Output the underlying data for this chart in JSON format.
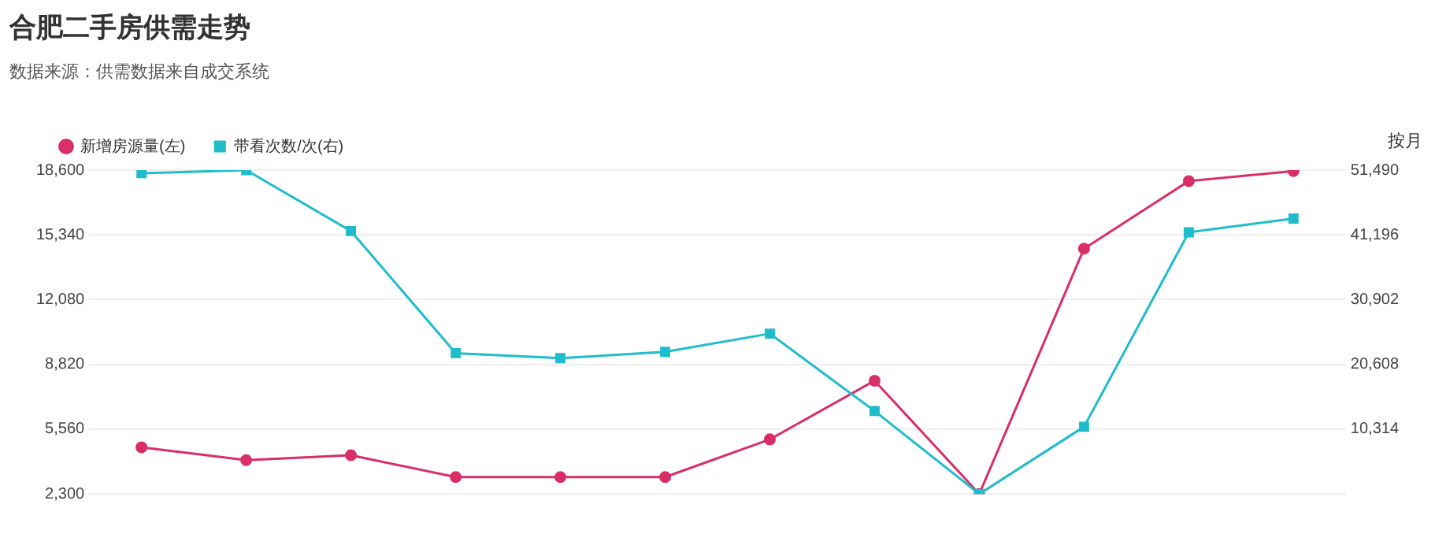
{
  "chart_data": {
    "type": "line",
    "title": "合肥二手房供需走势",
    "subtitle": "数据来源：供需数据来自成交系统",
    "annotations": [
      "按月"
    ],
    "categories": [
      null,
      null,
      null,
      null,
      null,
      null,
      null,
      null,
      null,
      null,
      null,
      null
    ],
    "series": [
      {
        "name": "新增房源量(左)",
        "color": "#d92e66",
        "marker": "circle",
        "values": [
          4650,
          4000,
          4250,
          3150,
          3150,
          3150,
          5050,
          8000,
          2300,
          14650,
          18050,
          18550
        ]
      },
      {
        "name": "带看次数/次(右)",
        "color": "#1fbccc",
        "marker": "square",
        "axis": "y2",
        "values": [
          51000,
          51490,
          41800,
          22400,
          21600,
          22600,
          25500,
          13200,
          20,
          10700,
          41600,
          43800
        ]
      }
    ],
    "ylim": [
      2300,
      18600
    ],
    "yticks": [
      {
        "value": 2300,
        "label": "2,300"
      },
      {
        "value": 5560,
        "label": "5,560"
      },
      {
        "value": 8820,
        "label": "8,820"
      },
      {
        "value": 12080,
        "label": "12,080"
      },
      {
        "value": 15340,
        "label": "15,340"
      },
      {
        "value": 18600,
        "label": "18,600"
      }
    ],
    "y2lim": [
      20,
      51490
    ],
    "y2ticks": [
      {
        "value": 10314,
        "label": "10,314"
      },
      {
        "value": 20608,
        "label": "20,608"
      },
      {
        "value": 30902,
        "label": "30,902"
      },
      {
        "value": 41196,
        "label": "41,196"
      },
      {
        "value": 51490,
        "label": "51,490"
      }
    ],
    "grid": "y",
    "legend": "top left",
    "line_style": "solid"
  }
}
